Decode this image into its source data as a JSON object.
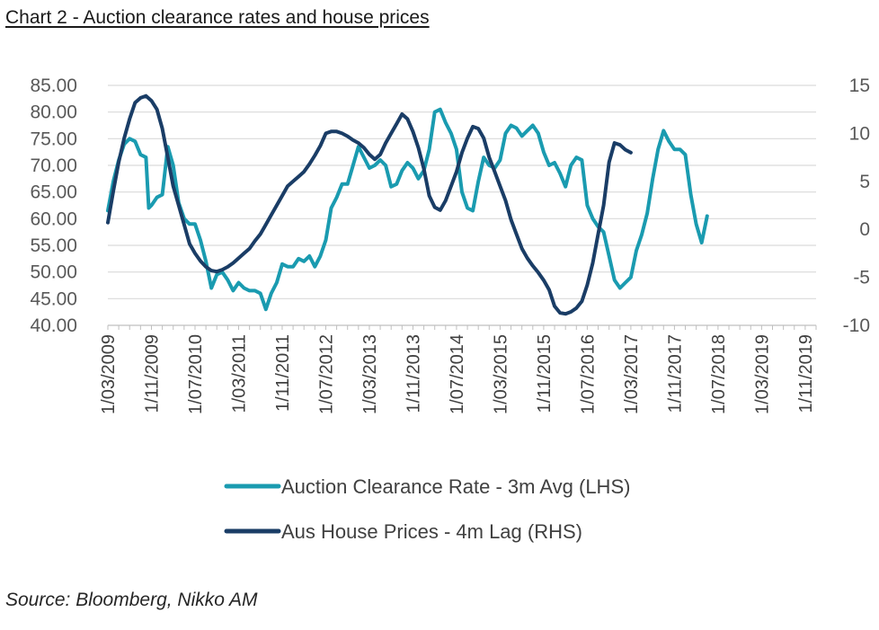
{
  "title": "Chart 2 - Auction clearance rates and house prices",
  "source": "Source: Bloomberg, Nikko AM",
  "chart_data": {
    "type": "line",
    "title": "Chart 2 - Auction clearance rates and house prices",
    "x_range": [
      0,
      130
    ],
    "x_ticks": [
      {
        "label": "1/03/2009",
        "month": 0
      },
      {
        "label": "1/11/2009",
        "month": 8
      },
      {
        "label": "1/07/2010",
        "month": 16
      },
      {
        "label": "1/03/2011",
        "month": 24
      },
      {
        "label": "1/11/2011",
        "month": 32
      },
      {
        "label": "1/07/2012",
        "month": 40
      },
      {
        "label": "1/03/2013",
        "month": 48
      },
      {
        "label": "1/11/2013",
        "month": 56
      },
      {
        "label": "1/07/2014",
        "month": 64
      },
      {
        "label": "1/03/2015",
        "month": 72
      },
      {
        "label": "1/11/2015",
        "month": 80
      },
      {
        "label": "1/07/2016",
        "month": 88
      },
      {
        "label": "1/03/2017",
        "month": 96
      },
      {
        "label": "1/11/2017",
        "month": 104
      },
      {
        "label": "1/07/2018",
        "month": 112
      },
      {
        "label": "1/03/2019",
        "month": 120
      },
      {
        "label": "1/11/2019",
        "month": 128
      }
    ],
    "y_left": {
      "min": 40,
      "max": 85,
      "ticks": [
        "85.00",
        "80.00",
        "75.00",
        "70.00",
        "65.00",
        "60.00",
        "55.00",
        "50.00",
        "45.00",
        "40.00"
      ],
      "tick_values": [
        85,
        80,
        75,
        70,
        65,
        60,
        55,
        50,
        45,
        40
      ]
    },
    "y_right": {
      "min": -10,
      "max": 15,
      "ticks": [
        "15",
        "10",
        "5",
        "0",
        "-5",
        "-10"
      ],
      "tick_values": [
        15,
        10,
        5,
        0,
        -5,
        -10
      ]
    },
    "grid": true,
    "legend_position": "bottom",
    "series": [
      {
        "name": "Auction Clearance Rate - 3m Avg (LHS)",
        "axis": "left",
        "color": "#1a9bb0",
        "points": [
          [
            0,
            61.5
          ],
          [
            1,
            67
          ],
          [
            2,
            71
          ],
          [
            3,
            74
          ],
          [
            4,
            75
          ],
          [
            5,
            74.5
          ],
          [
            6,
            72
          ],
          [
            7,
            71.5
          ],
          [
            7.5,
            62
          ],
          [
            8,
            62.5
          ],
          [
            9,
            64
          ],
          [
            10,
            64.5
          ],
          [
            11,
            73.5
          ],
          [
            12,
            70
          ],
          [
            13,
            63
          ],
          [
            14,
            60
          ],
          [
            15,
            59
          ],
          [
            16,
            59
          ],
          [
            17,
            56
          ],
          [
            18,
            52
          ],
          [
            19,
            47
          ],
          [
            20,
            49.5
          ],
          [
            21,
            50
          ],
          [
            22,
            48.5
          ],
          [
            23,
            46.5
          ],
          [
            24,
            48
          ],
          [
            25,
            47
          ],
          [
            26,
            46.5
          ],
          [
            27,
            46.5
          ],
          [
            28,
            46
          ],
          [
            29,
            43
          ],
          [
            30,
            46
          ],
          [
            31,
            48
          ],
          [
            32,
            51.5
          ],
          [
            33,
            51
          ],
          [
            34,
            51
          ],
          [
            35,
            52.5
          ],
          [
            36,
            52
          ],
          [
            37,
            53
          ],
          [
            38,
            51
          ],
          [
            39,
            53
          ],
          [
            40,
            56
          ],
          [
            41,
            62
          ],
          [
            42,
            64
          ],
          [
            43,
            66.5
          ],
          [
            44,
            66.5
          ],
          [
            45,
            70
          ],
          [
            46,
            73.5
          ],
          [
            47,
            71.5
          ],
          [
            48,
            69.5
          ],
          [
            49,
            70
          ],
          [
            50,
            71
          ],
          [
            51,
            70
          ],
          [
            52,
            66
          ],
          [
            53,
            66.5
          ],
          [
            54,
            69
          ],
          [
            55,
            70.5
          ],
          [
            56,
            69.5
          ],
          [
            57,
            67.5
          ],
          [
            58,
            69
          ],
          [
            59,
            73
          ],
          [
            60,
            80
          ],
          [
            61,
            80.5
          ],
          [
            62,
            78
          ],
          [
            63,
            76
          ],
          [
            64,
            73
          ],
          [
            65,
            65
          ],
          [
            66,
            62
          ],
          [
            67,
            61.5
          ],
          [
            68,
            67
          ],
          [
            69,
            71.5
          ],
          [
            70,
            70
          ],
          [
            71,
            69.5
          ],
          [
            72,
            71
          ],
          [
            73,
            76
          ],
          [
            74,
            77.5
          ],
          [
            75,
            77
          ],
          [
            76,
            75.5
          ],
          [
            77,
            76.5
          ],
          [
            78,
            77.5
          ],
          [
            79,
            76
          ],
          [
            80,
            72.5
          ],
          [
            81,
            70
          ],
          [
            82,
            70.5
          ],
          [
            83,
            68.5
          ],
          [
            84,
            66
          ],
          [
            85,
            70
          ],
          [
            86,
            71.5
          ],
          [
            87,
            71
          ],
          [
            88,
            62.5
          ],
          [
            89,
            60
          ],
          [
            90,
            58.5
          ],
          [
            91,
            57.5
          ],
          [
            92,
            53
          ],
          [
            93,
            48.5
          ],
          [
            94,
            47
          ],
          [
            95,
            48
          ],
          [
            96,
            49
          ],
          [
            97,
            54
          ],
          [
            98,
            57
          ],
          [
            99,
            61
          ],
          [
            100,
            67.5
          ],
          [
            101,
            73
          ],
          [
            102,
            76.5
          ],
          [
            103,
            74.5
          ],
          [
            104,
            73
          ],
          [
            105,
            73
          ],
          [
            106,
            72
          ],
          [
            107,
            64.5
          ],
          [
            108,
            59
          ],
          [
            109,
            55.5
          ],
          [
            110,
            60.5
          ]
        ]
      },
      {
        "name": "Aus House Prices - 4m Lag (RHS)",
        "axis": "right",
        "color": "#1a3d66",
        "points": [
          [
            0,
            0.7
          ],
          [
            1,
            4
          ],
          [
            2,
            7
          ],
          [
            3,
            9.5
          ],
          [
            4,
            11.5
          ],
          [
            5,
            13.2
          ],
          [
            6,
            13.7
          ],
          [
            7,
            13.9
          ],
          [
            8,
            13.4
          ],
          [
            9,
            12.5
          ],
          [
            10,
            10.5
          ],
          [
            11,
            7.5
          ],
          [
            12,
            4.5
          ],
          [
            13,
            2.5
          ],
          [
            14,
            0.5
          ],
          [
            15,
            -1.5
          ],
          [
            16,
            -2.5
          ],
          [
            17,
            -3.3
          ],
          [
            18,
            -3.9
          ],
          [
            19,
            -4.3
          ],
          [
            20,
            -4.4
          ],
          [
            21,
            -4.2
          ],
          [
            22,
            -3.9
          ],
          [
            23,
            -3.5
          ],
          [
            24,
            -3
          ],
          [
            25,
            -2.5
          ],
          [
            26,
            -2
          ],
          [
            27,
            -1.2
          ],
          [
            28,
            -0.5
          ],
          [
            29,
            0.5
          ],
          [
            30,
            1.5
          ],
          [
            31,
            2.5
          ],
          [
            32,
            3.5
          ],
          [
            33,
            4.5
          ],
          [
            34,
            5
          ],
          [
            35,
            5.5
          ],
          [
            36,
            6
          ],
          [
            37,
            6.8
          ],
          [
            38,
            7.7
          ],
          [
            39,
            8.7
          ],
          [
            40,
            10
          ],
          [
            41,
            10.2
          ],
          [
            42,
            10.2
          ],
          [
            43,
            10
          ],
          [
            44,
            9.7
          ],
          [
            45,
            9.3
          ],
          [
            46,
            9
          ],
          [
            47,
            8.5
          ],
          [
            48,
            7.8
          ],
          [
            49,
            7.3
          ],
          [
            50,
            7.8
          ],
          [
            51,
            9
          ],
          [
            52,
            10
          ],
          [
            53,
            11
          ],
          [
            54,
            12
          ],
          [
            55,
            11.5
          ],
          [
            56,
            10.2
          ],
          [
            57,
            8.5
          ],
          [
            58,
            6.3
          ],
          [
            59,
            3.5
          ],
          [
            60,
            2.3
          ],
          [
            61,
            2
          ],
          [
            62,
            3
          ],
          [
            63,
            4.5
          ],
          [
            64,
            6
          ],
          [
            65,
            8
          ],
          [
            66,
            9.5
          ],
          [
            67,
            10.7
          ],
          [
            68,
            10.5
          ],
          [
            69,
            9.5
          ],
          [
            70,
            7.5
          ],
          [
            71,
            6
          ],
          [
            72,
            4.5
          ],
          [
            73,
            3
          ],
          [
            74,
            1
          ],
          [
            75,
            -0.5
          ],
          [
            76,
            -2
          ],
          [
            77,
            -3
          ],
          [
            78,
            -3.8
          ],
          [
            79,
            -4.5
          ],
          [
            80,
            -5.3
          ],
          [
            81,
            -6.3
          ],
          [
            82,
            -8
          ],
          [
            83,
            -8.7
          ],
          [
            84,
            -8.8
          ],
          [
            85,
            -8.6
          ],
          [
            86,
            -8.2
          ],
          [
            87,
            -7.5
          ],
          [
            88,
            -5.8
          ],
          [
            89,
            -3.5
          ],
          [
            90,
            -0.5
          ],
          [
            91,
            2.5
          ],
          [
            92,
            7
          ],
          [
            93,
            9
          ],
          [
            94,
            8.8
          ],
          [
            95,
            8.3
          ],
          [
            96,
            8
          ]
        ]
      }
    ]
  },
  "legend": [
    {
      "label": "Auction Clearance Rate - 3m Avg (LHS)",
      "color": "#1a9bb0"
    },
    {
      "label": "Aus House Prices - 4m Lag (RHS)",
      "color": "#1a3d66"
    }
  ]
}
